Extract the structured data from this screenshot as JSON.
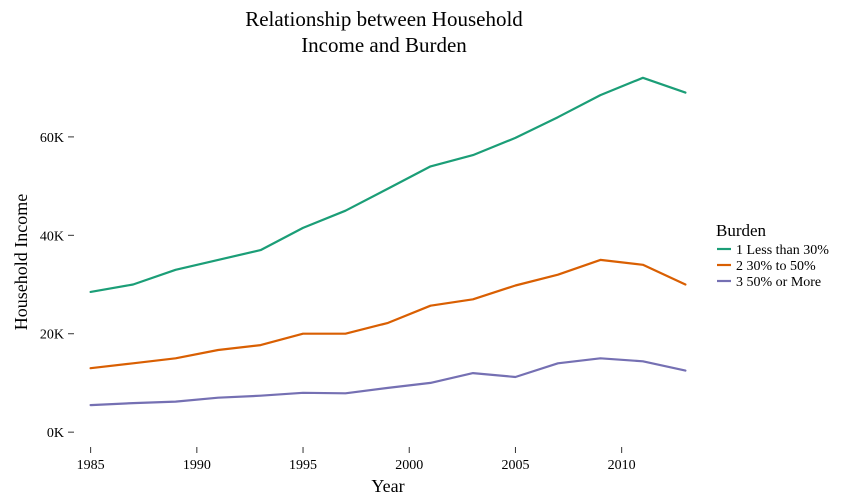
{
  "chart_data": {
    "type": "line",
    "title_lines": [
      "Relationship between Household",
      "Income and Burden"
    ],
    "xlabel": "Year",
    "ylabel": "Household Income",
    "xlim": [
      1984.5,
      2013.5
    ],
    "ylim": [
      -2000,
      74000
    ],
    "x_ticks": [
      1985,
      1990,
      1995,
      2000,
      2005,
      2010
    ],
    "y_ticks": [
      0,
      20000,
      40000,
      60000
    ],
    "y_tick_labels": [
      "0K",
      "20K",
      "40K",
      "60K"
    ],
    "grid": false,
    "legend": {
      "title": "Burden",
      "position": "right"
    },
    "x": [
      1985,
      1987,
      1989,
      1991,
      1993,
      1995,
      1997,
      1999,
      2001,
      2003,
      2005,
      2007,
      2009,
      2011,
      2013
    ],
    "series": [
      {
        "name": "1 Less than 30%",
        "color": "#1b9e77",
        "values": [
          28500,
          30000,
          33000,
          35000,
          37000,
          41500,
          45000,
          49500,
          54000,
          56300,
          59800,
          64000,
          68500,
          72000,
          69000
        ]
      },
      {
        "name": "2 30% to 50%",
        "color": "#d95f02",
        "values": [
          13000,
          14000,
          15000,
          16700,
          17700,
          20000,
          20000,
          22200,
          25700,
          27000,
          29800,
          32000,
          35000,
          34000,
          30000
        ]
      },
      {
        "name": "3 50% or More",
        "color": "#7570b3",
        "values": [
          5500,
          5900,
          6200,
          7000,
          7400,
          8000,
          7900,
          9000,
          10000,
          12000,
          11200,
          14000,
          15000,
          14400,
          12500
        ]
      }
    ]
  }
}
